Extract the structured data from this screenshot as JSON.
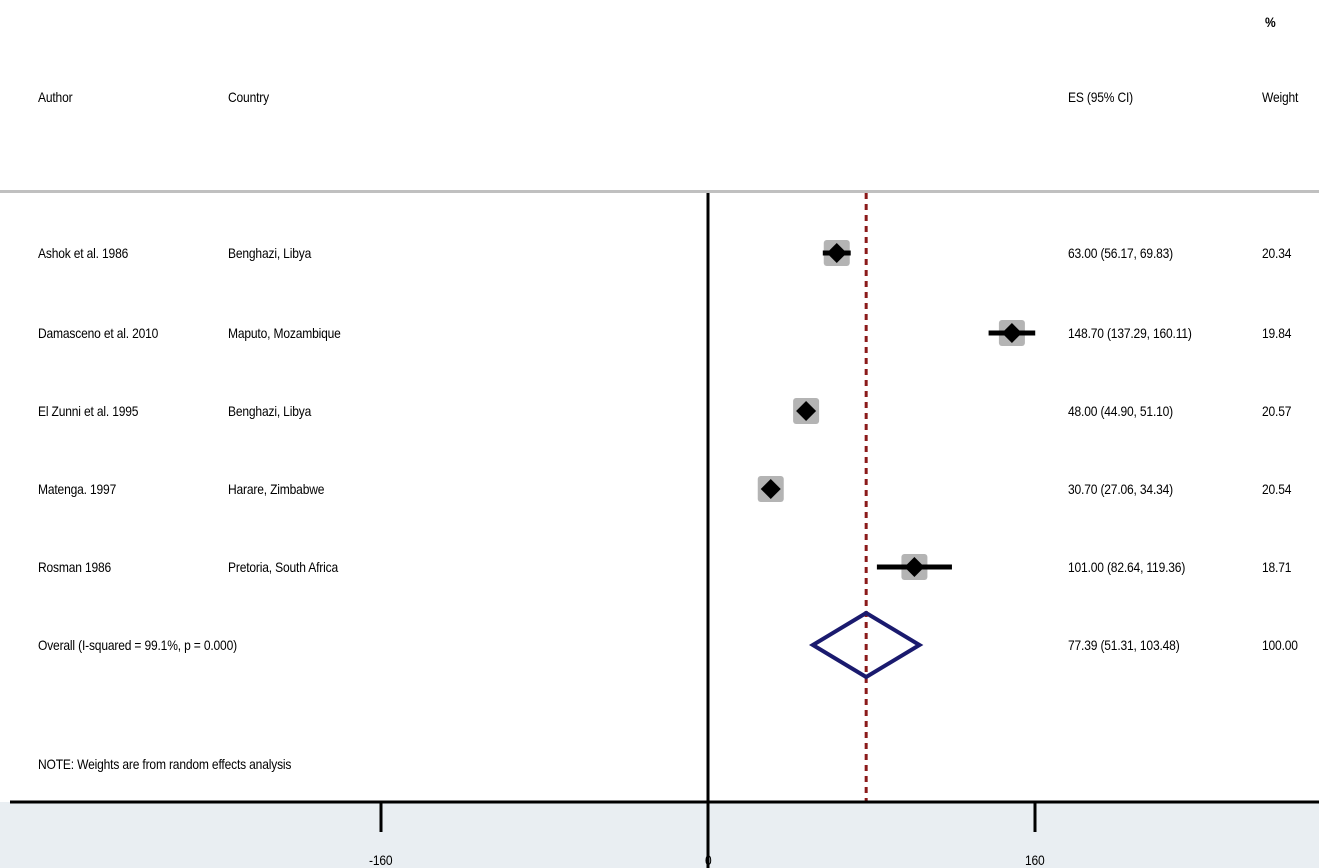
{
  "chart_data": {
    "type": "forest",
    "columns": {
      "author": "Author",
      "country": "Country",
      "es": "ES (95% CI)",
      "weight_pct": "%",
      "weight": "Weight"
    },
    "studies": [
      {
        "author": "Ashok et al. 1986",
        "country": "Benghazi, Libya",
        "es": 63.0,
        "lo": 56.17,
        "hi": 69.83,
        "es_text": "63.00 (56.17, 69.83)",
        "weight": "20.34"
      },
      {
        "author": "Damasceno et al.  2010",
        "country": "Maputo, Mozambique",
        "es": 148.7,
        "lo": 137.29,
        "hi": 160.11,
        "es_text": "148.70 (137.29, 160.11)",
        "weight": "19.84"
      },
      {
        "author": "El Zunni et al. 1995",
        "country": "Benghazi, Libya",
        "es": 48.0,
        "lo": 44.9,
        "hi": 51.1,
        "es_text": "48.00 (44.90, 51.10)",
        "weight": "20.57"
      },
      {
        "author": "Matenga. 1997",
        "country": "Harare, Zimbabwe",
        "es": 30.7,
        "lo": 27.06,
        "hi": 34.34,
        "es_text": "30.70 (27.06, 34.34)",
        "weight": "20.54"
      },
      {
        "author": "Rosman 1986",
        "country": "Pretoria, South Africa",
        "es": 101.0,
        "lo": 82.64,
        "hi": 119.36,
        "es_text": "101.00 (82.64, 119.36)",
        "weight": "18.71"
      }
    ],
    "overall": {
      "label": "Overall  (I-squared = 99.1%,  p = 0.000)",
      "es": 77.39,
      "lo": 51.31,
      "hi": 103.48,
      "es_text": "77.39 (51.31, 103.48)",
      "weight": "100.00"
    },
    "note": "NOTE: Weights are from random effects analysis",
    "x_ticks": [
      -160,
      0,
      160
    ],
    "x_tick_labels": [
      "-160",
      "0",
      "160"
    ],
    "null_line": 0,
    "colors": {
      "marker": "#000000",
      "weight_box": "#b4b4b4",
      "overall_diamond": "#1a1a6e",
      "overall_line": "#8b1a1a",
      "axis_band": "#e9eef2"
    }
  }
}
